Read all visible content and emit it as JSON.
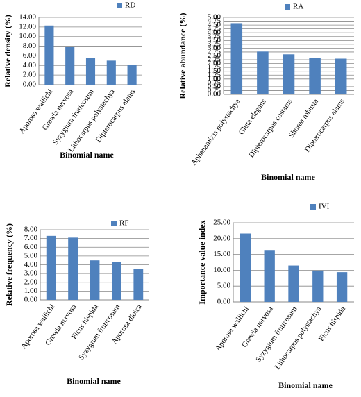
{
  "chart_data": [
    {
      "type": "bar",
      "y_label": "Relative density (%)",
      "x_label": "Binomial name",
      "categories": [
        "Aporosa wallichi",
        "Grewia nervosa",
        "Syzygium fruticosum",
        "Lithocarpus polystachya",
        "Dipterocarpus alatus"
      ],
      "series": [
        {
          "name": "RD",
          "color": "#4f81bd",
          "values": [
            12.3,
            7.9,
            5.6,
            5.0,
            4.1
          ]
        }
      ],
      "ylim": [
        0,
        14
      ],
      "grid": true,
      "yticks": [
        {
          "value": 0,
          "label": "0.00"
        },
        {
          "value": 2,
          "label": "2.00"
        },
        {
          "value": 4,
          "label": "4.00"
        },
        {
          "value": 6,
          "label": "6.00"
        },
        {
          "value": 8,
          "label": "8.00"
        },
        {
          "value": 10,
          "label": "10.00"
        },
        {
          "value": 12,
          "label": "12.00"
        },
        {
          "value": 14,
          "label": "14.00"
        }
      ]
    },
    {
      "type": "bar",
      "y_label": "Relative abundance (%)",
      "x_label": "Binomial name",
      "categories": [
        "Aphanamixis polystachya",
        "Gluta elegans",
        "Dipterocarpus costatus",
        "Shorea robusta",
        "Dipterocarpus alatus"
      ],
      "series": [
        {
          "name": "RA",
          "color": "#4f81bd",
          "values": [
            4.62,
            2.78,
            2.6,
            2.38,
            2.32
          ]
        }
      ],
      "ylim": [
        0,
        5
      ],
      "grid": true,
      "yticks": [
        {
          "value": 0,
          "label": "0.00"
        },
        {
          "value": 0.25,
          "label": "0.25"
        },
        {
          "value": 0.5,
          "label": "0.50"
        },
        {
          "value": 0.75,
          "label": "0.75"
        },
        {
          "value": 1,
          "label": "1.00"
        },
        {
          "value": 1.25,
          "label": "1.25"
        },
        {
          "value": 1.5,
          "label": "1.50"
        },
        {
          "value": 1.75,
          "label": "1.75"
        },
        {
          "value": 2,
          "label": "2.00"
        },
        {
          "value": 2.25,
          "label": "2.25"
        },
        {
          "value": 2.5,
          "label": "2.50"
        },
        {
          "value": 2.75,
          "label": "2.75"
        },
        {
          "value": 3,
          "label": "3.00"
        },
        {
          "value": 3.25,
          "label": "3.25"
        },
        {
          "value": 3.5,
          "label": "3.50"
        },
        {
          "value": 3.75,
          "label": "3.75"
        },
        {
          "value": 4,
          "label": "4.00"
        },
        {
          "value": 4.25,
          "label": "4.25"
        },
        {
          "value": 4.5,
          "label": "4.50"
        },
        {
          "value": 4.75,
          "label": "4.75"
        },
        {
          "value": 5,
          "label": "5.00"
        }
      ]
    },
    {
      "type": "bar",
      "y_label": "Relative frequency (%)",
      "x_label": "Binomial name",
      "categories": [
        "Aporosa wallichi",
        "Grewia nervosa",
        "Ficus hispida",
        "Syzygium fruticosum",
        "Aporosa dioica"
      ],
      "series": [
        {
          "name": "RF",
          "color": "#4f81bd",
          "values": [
            7.3,
            7.1,
            4.5,
            4.35,
            3.55
          ]
        }
      ],
      "ylim": [
        0,
        8
      ],
      "grid": true,
      "yticks": [
        {
          "value": 0,
          "label": "0.00"
        },
        {
          "value": 1,
          "label": "1.00"
        },
        {
          "value": 2,
          "label": "2.00"
        },
        {
          "value": 3,
          "label": "3.00"
        },
        {
          "value": 4,
          "label": "4.00"
        },
        {
          "value": 5,
          "label": "5.00"
        },
        {
          "value": 6,
          "label": "6.00"
        },
        {
          "value": 7,
          "label": "7.00"
        },
        {
          "value": 8,
          "label": "8.00"
        }
      ]
    },
    {
      "type": "bar",
      "y_label": "Importance value index",
      "x_label": "Binomial name",
      "categories": [
        "Aporosa wallichi",
        "Grewia nervosa",
        "Syzygium fruticosum",
        "Lithocarpus polystachya",
        "Ficus hispida"
      ],
      "series": [
        {
          "name": "IVI",
          "color": "#4f81bd",
          "values": [
            21.6,
            16.4,
            11.5,
            9.9,
            9.4
          ]
        }
      ],
      "ylim": [
        0,
        25
      ],
      "grid": true,
      "yticks": [
        {
          "value": 0,
          "label": "0.00"
        },
        {
          "value": 5,
          "label": "5.00"
        },
        {
          "value": 10,
          "label": "10.00"
        },
        {
          "value": 15,
          "label": "15.00"
        },
        {
          "value": 20,
          "label": "20.00"
        },
        {
          "value": 25,
          "label": "25.00"
        }
      ]
    }
  ]
}
